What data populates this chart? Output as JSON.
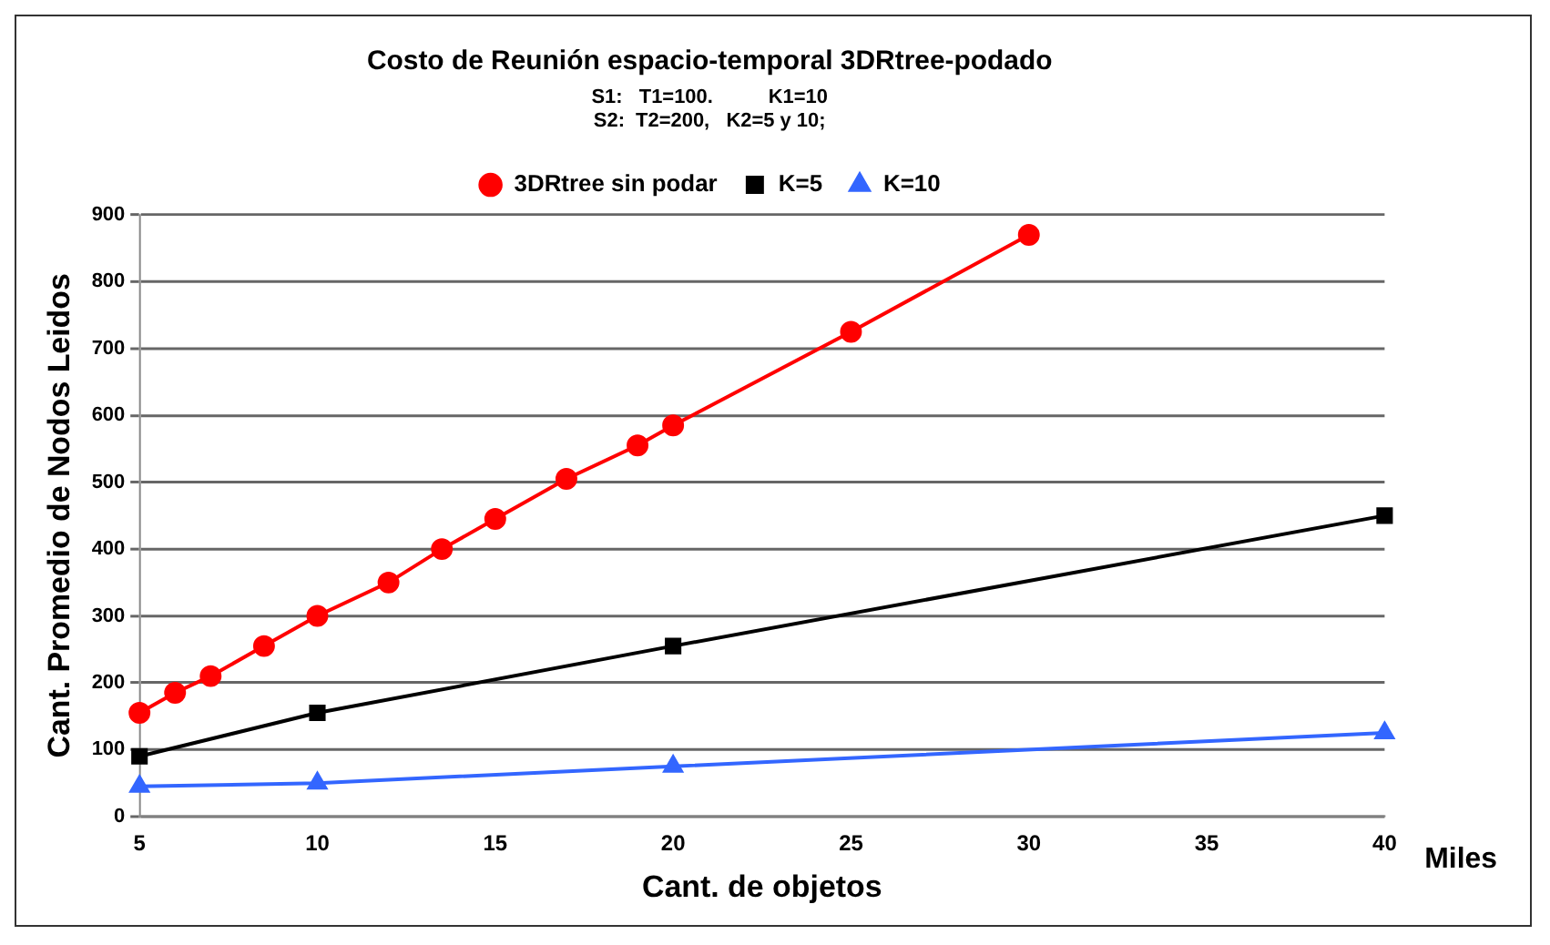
{
  "chart_data": {
    "type": "line",
    "title": "Costo de Reunión espacio-temporal 3DRtree-podado",
    "subtitle": "S1:   T1=100.          K1=10\nS2:  T2=200,   K2=5 y 10;",
    "xlabel": "Cant. de objetos",
    "ylabel": "Cant. Promedio de Nodos Leidos",
    "annotations": [
      "Miles"
    ],
    "xlim": [
      5,
      40
    ],
    "xticks": [
      5,
      10,
      15,
      20,
      25,
      30,
      35,
      40
    ],
    "ylim": [
      0,
      900
    ],
    "yticks": [
      0,
      100,
      200,
      300,
      400,
      500,
      600,
      700,
      800,
      900
    ],
    "grid": "y",
    "legend": "top",
    "series": [
      {
        "name": "3DRtree sin podar",
        "color": "#ff0000",
        "marker": "circle",
        "x": [
          5,
          6,
          7,
          8.5,
          10,
          12,
          13.5,
          15,
          17,
          19,
          20,
          25,
          30
        ],
        "values": [
          155,
          185,
          210,
          255,
          300,
          350,
          400,
          445,
          505,
          555,
          585,
          725,
          870
        ]
      },
      {
        "name": "K=5",
        "color": "#000000",
        "marker": "square",
        "x": [
          5,
          10,
          20,
          40
        ],
        "values": [
          90,
          155,
          255,
          450
        ]
      },
      {
        "name": "K=10",
        "color": "#3366ff",
        "marker": "triangle",
        "x": [
          5,
          10,
          20,
          40
        ],
        "values": [
          45,
          50,
          75,
          125
        ]
      }
    ]
  }
}
